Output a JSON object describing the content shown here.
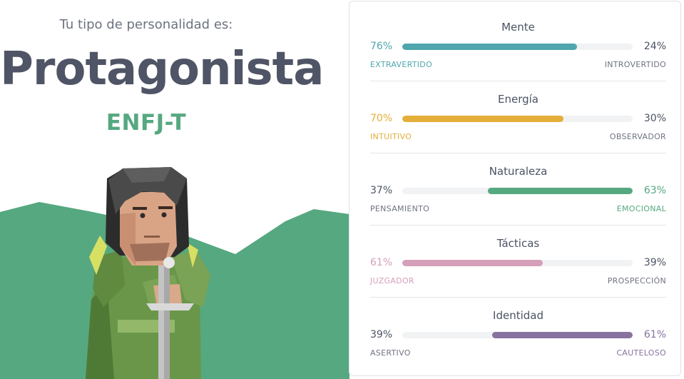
{
  "result": {
    "intro": "Tu tipo de personalidad es:",
    "type_name": "Protagonista",
    "type_code": "ENFJ-T"
  },
  "colors": {
    "mente": "#4fa6ad",
    "energia": "#e4ae3a",
    "naturaleza": "#56a880",
    "tacticas": "#d59fb9",
    "identidad": "#88729f",
    "muted": "#6f7482",
    "hills": "#56a880"
  },
  "traits": [
    {
      "title": "Mente",
      "left_pct": "76%",
      "right_pct": "24%",
      "left_label": "EXTRAVERTIDO",
      "right_label": "INTROVERTIDO",
      "dominant": "left",
      "value": 0.76
    },
    {
      "title": "Energía",
      "left_pct": "70%",
      "right_pct": "30%",
      "left_label": "INTUITIVO",
      "right_label": "OBSERVADOR",
      "dominant": "left",
      "value": 0.7
    },
    {
      "title": "Naturaleza",
      "left_pct": "37%",
      "right_pct": "63%",
      "left_label": "PENSAMIENTO",
      "right_label": "EMOCIONAL",
      "dominant": "right",
      "value": 0.63
    },
    {
      "title": "Tácticas",
      "left_pct": "61%",
      "right_pct": "39%",
      "left_label": "JUZGADOR",
      "right_label": "PROSPECCIÓN",
      "dominant": "left",
      "value": 0.61
    },
    {
      "title": "Identidad",
      "left_pct": "39%",
      "right_pct": "61%",
      "left_label": "ASERTIVO",
      "right_label": "CAUTELOSO",
      "dominant": "right",
      "value": 0.61
    }
  ]
}
